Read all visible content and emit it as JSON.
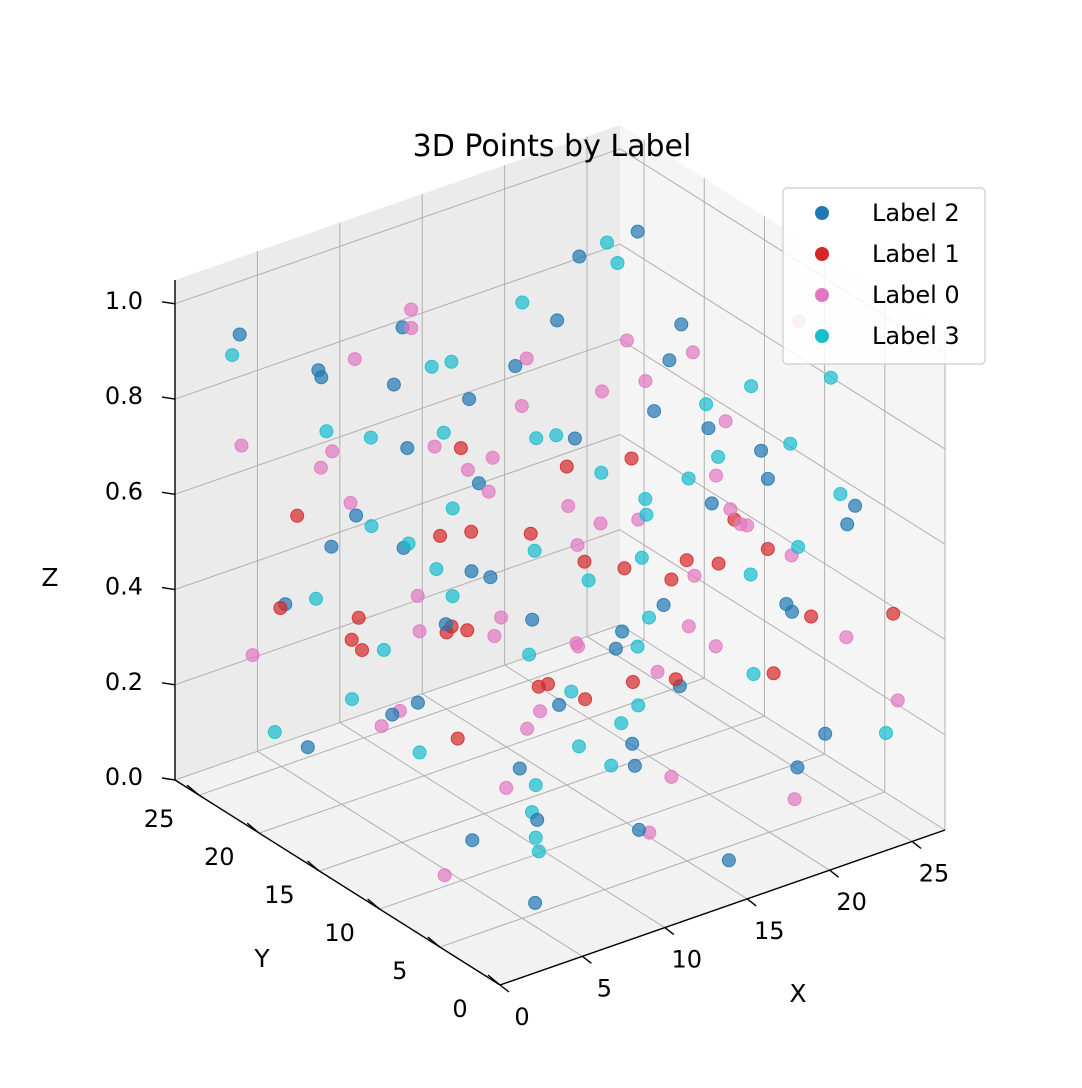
{
  "chart_data": {
    "type": "scatter",
    "projection": "3d",
    "title": "3D Points by Label",
    "xlabel": "X",
    "ylabel": "Y",
    "zlabel": "Z",
    "xlim": [
      0,
      27
    ],
    "ylim": [
      0,
      27
    ],
    "zlim": [
      0,
      1.05
    ],
    "x_ticks": [
      "0",
      "5",
      "10",
      "15",
      "20",
      "25"
    ],
    "y_ticks": [
      "0",
      "5",
      "10",
      "15",
      "20",
      "25"
    ],
    "z_ticks": [
      "0.0",
      "0.2",
      "0.4",
      "0.6",
      "0.8",
      "1.0"
    ],
    "grid": true,
    "legend_position": "top-right",
    "series": [
      {
        "name": "Label 2",
        "color": "#1f77b4",
        "points": [
          [
            2.1,
            24.5,
            0.95
          ],
          [
            5.3,
            22.1,
            0.86
          ],
          [
            8.4,
            19.2,
            0.72
          ],
          [
            12.1,
            15.3,
            0.91
          ],
          [
            16.8,
            10.2,
            0.84
          ],
          [
            20.3,
            6.1,
            0.78
          ],
          [
            24.1,
            3.5,
            0.66
          ],
          [
            3.4,
            13.6,
            0.31
          ],
          [
            7.7,
            8.9,
            0.22
          ],
          [
            11.5,
            4.2,
            0.12
          ],
          [
            15.2,
            1.8,
            0.05
          ],
          [
            19.8,
            2.4,
            0.18
          ],
          [
            22.7,
            7.3,
            0.41
          ],
          [
            25.6,
            12.8,
            0.55
          ],
          [
            18.2,
            18.7,
            0.63
          ],
          [
            9.6,
            25.1,
            0.47
          ],
          [
            4.1,
            2.7,
            0.08
          ],
          [
            13.9,
            21.4,
            0.36
          ],
          [
            6.2,
            16.5,
            0.58
          ],
          [
            21.1,
            22.3,
            0.92
          ],
          [
            1.3,
            8.6,
            0.44
          ],
          [
            10.8,
            11.7,
            0.03
          ],
          [
            17.4,
            14.2,
            0.27
          ],
          [
            23.5,
            18.1,
            0.74
          ],
          [
            14.6,
            6.4,
            0.52
          ],
          [
            8.9,
            1.2,
            0.38
          ],
          [
            26.1,
            24.3,
            0.88
          ],
          [
            2.8,
            19.8,
            0.15
          ],
          [
            12.7,
            26.2,
            0.69
          ],
          [
            19.4,
            11.5,
            0.97
          ],
          [
            5.9,
            5.4,
            0.61
          ],
          [
            24.8,
            9.7,
            0.33
          ],
          [
            16.1,
            23.8,
            0.48
          ],
          [
            11.2,
            17.9,
            0.81
          ],
          [
            7.3,
            12.3,
            0.02
          ],
          [
            20.9,
            1.6,
            0.25
          ],
          [
            3.7,
            22.9,
            0.39
          ],
          [
            15.7,
            3.9,
            0.76
          ],
          [
            22.3,
            15.6,
            0.11
          ],
          [
            9.2,
            20.7,
            0.94
          ],
          [
            0.8,
            15.1,
            0.67
          ],
          [
            18.7,
            26.4,
            0.21
          ],
          [
            13.4,
            8.2,
            0.45
          ],
          [
            25.3,
            5.8,
            0.57
          ],
          [
            6.8,
            24.4,
            0.82
          ],
          [
            17.9,
            19.6,
            0.06
          ],
          [
            10.3,
            2.9,
            0.29
          ],
          [
            21.7,
            12.4,
            0.71
          ],
          [
            4.6,
            10.8,
            0.53
          ],
          [
            14.2,
            14.7,
            0.99
          ]
        ]
      },
      {
        "name": "Label 1",
        "color": "#d62728",
        "points": [
          [
            1.5,
            20.3,
            0.45
          ],
          [
            3.2,
            16.7,
            0.42
          ],
          [
            5.6,
            12.1,
            0.48
          ],
          [
            7.9,
            7.6,
            0.41
          ],
          [
            10.4,
            3.2,
            0.46
          ],
          [
            12.8,
            22.5,
            0.43
          ],
          [
            15.3,
            18.4,
            0.47
          ],
          [
            17.7,
            13.9,
            0.44
          ],
          [
            20.2,
            9.5,
            0.49
          ],
          [
            22.6,
            5.1,
            0.42
          ],
          [
            25.1,
            1.7,
            0.45
          ],
          [
            2.4,
            6.8,
            0.38
          ],
          [
            6.1,
            25.2,
            0.51
          ],
          [
            9.7,
            17.3,
            0.36
          ],
          [
            13.6,
            11.6,
            0.54
          ],
          [
            18.5,
            2.6,
            0.39
          ],
          [
            23.9,
            21.8,
            0.47
          ],
          [
            11.3,
            8.4,
            0.33
          ],
          [
            16.4,
            25.7,
            0.52
          ],
          [
            21.5,
            15.2,
            0.35
          ],
          [
            4.3,
            1.9,
            0.55
          ],
          [
            8.6,
            14.5,
            0.41
          ],
          [
            14.9,
            5.8,
            0.37
          ],
          [
            19.1,
            20.6,
            0.53
          ],
          [
            24.5,
            11.3,
            0.44
          ],
          [
            0.9,
            12.7,
            0.49
          ],
          [
            26.2,
            16.4,
            0.4
          ],
          [
            12.2,
            19.1,
            0.5
          ],
          [
            7.2,
            21.6,
            0.34
          ],
          [
            17.1,
            7.9,
            0.56
          ]
        ]
      },
      {
        "name": "Label 0",
        "color": "#e377c2",
        "points": [
          [
            1.8,
            3.4,
            0.96
          ],
          [
            4.7,
            9.1,
            0.88
          ],
          [
            7.5,
            15.7,
            0.79
          ],
          [
            10.1,
            21.2,
            0.92
          ],
          [
            13.3,
            25.6,
            0.85
          ],
          [
            16.6,
            2.2,
            0.73
          ],
          [
            19.6,
            7.7,
            0.64
          ],
          [
            22.9,
            13.4,
            0.58
          ],
          [
            25.8,
            19.3,
            0.71
          ],
          [
            3.1,
            24.8,
            0.26
          ],
          [
            6.4,
            18.6,
            0.17
          ],
          [
            9.8,
            12.9,
            0.09
          ],
          [
            14.1,
            6.9,
            0.04
          ],
          [
            18.9,
            1.4,
            0.14
          ],
          [
            23.2,
            26.1,
            0.31
          ],
          [
            2.6,
            10.4,
            0.62
          ],
          [
            8.1,
            4.6,
            0.54
          ],
          [
            11.9,
            16.2,
            0.37
          ],
          [
            15.8,
            22.1,
            0.19
          ],
          [
            20.7,
            17.8,
            0.82
          ],
          [
            24.2,
            8.3,
            0.97
          ],
          [
            5.2,
            13.8,
            0.46
          ],
          [
            17.3,
            10.6,
            0.28
          ],
          [
            12.6,
            1.1,
            0.69
          ],
          [
            21.8,
            23.5,
            0.08
          ],
          [
            0.6,
            22.3,
            0.77
          ],
          [
            9.1,
            26.4,
            0.59
          ],
          [
            26.4,
            3.1,
            0.23
          ],
          [
            13.8,
            19.5,
            0.63
          ],
          [
            6.9,
            7.2,
            0.34
          ],
          [
            19.2,
            14.8,
            0.51
          ],
          [
            3.9,
            17.4,
            0.99
          ],
          [
            15.1,
            12.2,
            0.87
          ],
          [
            22.4,
            1.9,
            0.43
          ],
          [
            10.7,
            6.3,
            0.74
          ],
          [
            24.7,
            15.9,
            0.16
          ],
          [
            7.8,
            23.1,
            0.55
          ],
          [
            16.9,
            4.4,
            0.91
          ],
          [
            1.1,
            6.1,
            0.12
          ],
          [
            20.1,
            25.3,
            0.67
          ],
          [
            11.6,
            24.2,
            0.05
          ],
          [
            5.8,
            1.5,
            0.83
          ],
          [
            18.1,
            9.1,
            0.39
          ],
          [
            25.4,
            22.7,
            0.6
          ],
          [
            13.1,
            3.7,
            0.22
          ],
          [
            8.7,
            10.1,
            0.95
          ],
          [
            23.8,
            12.6,
            0.48
          ],
          [
            4.4,
            20.9,
            0.7
          ],
          [
            14.7,
            16.8,
            0.13
          ],
          [
            21.2,
            4.8,
            0.57
          ]
        ]
      },
      {
        "name": "Label 3",
        "color": "#17becf",
        "points": [
          [
            2.3,
            25.4,
            0.89
          ],
          [
            5.1,
            21.4,
            0.76
          ],
          [
            8.2,
            16.9,
            0.93
          ],
          [
            11.4,
            12.6,
            0.81
          ],
          [
            14.8,
            8.1,
            0.68
          ],
          [
            18.3,
            4.2,
            0.97
          ],
          [
            21.6,
            1.3,
            0.75
          ],
          [
            24.9,
            6.6,
            0.87
          ],
          [
            26.3,
            11.9,
            0.63
          ],
          [
            3.6,
            1.7,
            0.21
          ],
          [
            6.7,
            6.2,
            0.13
          ],
          [
            9.9,
            10.9,
            0.07
          ],
          [
            13.2,
            15.1,
            0.02
          ],
          [
            16.3,
            19.9,
            0.18
          ],
          [
            19.7,
            24.1,
            0.29
          ],
          [
            23.1,
            20.2,
            0.11
          ],
          [
            1.4,
            17.2,
            0.52
          ],
          [
            4.9,
            14.3,
            0.64
          ],
          [
            10.6,
            19.8,
            0.43
          ],
          [
            15.5,
            25.9,
            0.56
          ],
          [
            20.8,
            16.7,
            0.38
          ],
          [
            25.7,
            26.3,
            0.83
          ],
          [
            7.1,
            3.8,
            0.47
          ],
          [
            12.4,
            5.5,
            0.35
          ],
          [
            17.8,
            12.3,
            0.61
          ],
          [
            22.1,
            9.2,
            0.24
          ],
          [
            0.7,
            4.9,
            0.73
          ],
          [
            9.4,
            23.6,
            0.66
          ],
          [
            14.4,
            1.6,
            0.91
          ],
          [
            18.6,
            15.4,
            0.08
          ],
          [
            24.3,
            17.6,
            0.49
          ],
          [
            3.3,
            11.2,
            0.27
          ],
          [
            11.8,
            25.8,
            0.15
          ],
          [
            16.2,
            9.8,
            0.42
          ],
          [
            21.3,
            19.4,
            0.95
          ],
          [
            6.3,
            19.3,
            0.58
          ],
          [
            13.7,
            22.8,
            0.78
          ],
          [
            8.5,
            2.4,
            0.32
          ],
          [
            25.1,
            2.3,
            0.19
          ],
          [
            19.3,
            5.6,
            0.54
          ],
          [
            2.9,
            7.9,
            0.84
          ],
          [
            15.9,
            17.1,
            0.69
          ],
          [
            10.2,
            7.4,
            0.26
          ],
          [
            23.6,
            23.9,
            0.41
          ],
          [
            5.4,
            26.1,
            0.05
          ],
          [
            17.2,
            21.7,
            0.88
          ],
          [
            12.9,
            10.3,
            0.53
          ],
          [
            22.8,
            14.1,
            0.72
          ],
          [
            1.9,
            14.9,
            0.34
          ],
          [
            20.5,
            3.3,
            0.62
          ]
        ]
      }
    ]
  }
}
